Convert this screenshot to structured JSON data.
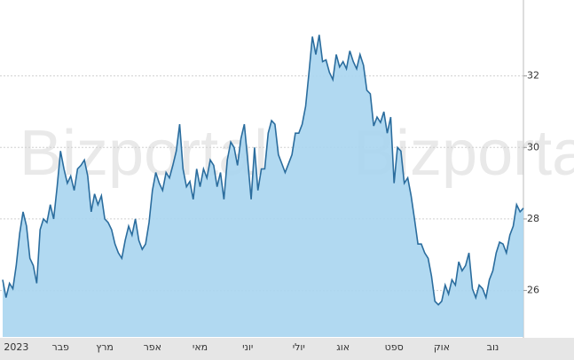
{
  "chart_data": {
    "type": "area",
    "watermark": "Bizportal",
    "categories": [
      null,
      null,
      null,
      null,
      "2023",
      null,
      null,
      null,
      null,
      null,
      null,
      null,
      null,
      null,
      null,
      null,
      null,
      "פבר",
      null,
      null,
      null,
      null,
      null,
      null,
      null,
      null,
      null,
      null,
      null,
      null,
      "מרץ",
      null,
      null,
      null,
      null,
      null,
      null,
      null,
      null,
      null,
      null,
      null,
      null,
      null,
      "אפר",
      null,
      null,
      null,
      null,
      null,
      null,
      null,
      null,
      null,
      null,
      null,
      null,
      null,
      "מאי",
      null,
      null,
      null,
      null,
      null,
      null,
      null,
      null,
      null,
      null,
      null,
      null,
      null,
      "יוני",
      null,
      null,
      null,
      null,
      null,
      null,
      null,
      null,
      null,
      null,
      null,
      null,
      null,
      null,
      "יולי",
      null,
      null,
      null,
      null,
      null,
      null,
      null,
      null,
      null,
      null,
      null,
      null,
      "אוג",
      null,
      null,
      null,
      null,
      null,
      null,
      null,
      null,
      null,
      null,
      null,
      null,
      null,
      null,
      "ספט",
      null,
      null,
      null,
      null,
      null,
      null,
      null,
      null,
      null,
      null,
      null,
      null,
      null,
      "אוק",
      null,
      null,
      null,
      null,
      null,
      null,
      null,
      null,
      null,
      null,
      null,
      null,
      null,
      null,
      "נוב",
      null,
      null,
      null,
      null,
      null,
      null,
      null,
      null,
      null
    ],
    "values": [
      26.3,
      25.8,
      26.2,
      26.05,
      26.7,
      27.6,
      28.2,
      27.8,
      26.9,
      26.7,
      26.2,
      27.7,
      28.0,
      27.9,
      28.4,
      28.0,
      28.9,
      29.9,
      29.4,
      29.0,
      29.2,
      28.8,
      29.4,
      29.5,
      29.65,
      29.2,
      28.2,
      28.7,
      28.4,
      28.65,
      28.0,
      27.9,
      27.7,
      27.3,
      27.05,
      26.9,
      27.4,
      27.8,
      27.55,
      28.0,
      27.4,
      27.15,
      27.3,
      27.9,
      28.8,
      29.3,
      29.0,
      28.8,
      29.3,
      29.15,
      29.5,
      29.9,
      30.65,
      29.4,
      28.9,
      29.05,
      28.55,
      29.4,
      28.9,
      29.4,
      29.15,
      29.65,
      29.5,
      28.9,
      29.3,
      28.55,
      29.65,
      30.15,
      30.0,
      29.5,
      30.25,
      30.65,
      29.65,
      28.55,
      30.0,
      28.8,
      29.4,
      29.4,
      30.4,
      30.75,
      30.65,
      29.8,
      29.55,
      29.3,
      29.55,
      29.8,
      30.4,
      30.4,
      30.65,
      31.15,
      32.1,
      33.1,
      32.6,
      33.15,
      32.4,
      32.45,
      32.1,
      31.9,
      32.6,
      32.25,
      32.4,
      32.2,
      32.7,
      32.4,
      32.2,
      32.6,
      32.3,
      31.6,
      31.5,
      30.6,
      30.85,
      30.7,
      31.0,
      30.4,
      30.85,
      29.0,
      30.0,
      29.9,
      29.0,
      29.15,
      28.65,
      28.0,
      27.3,
      27.3,
      27.05,
      26.9,
      26.4,
      25.7,
      25.6,
      25.7,
      26.15,
      25.9,
      26.3,
      26.15,
      26.8,
      26.55,
      26.7,
      27.05,
      26.05,
      25.8,
      26.15,
      26.05,
      25.8,
      26.3,
      26.55,
      27.05,
      27.35,
      27.3,
      27.05,
      27.55,
      27.8,
      28.4,
      28.2,
      28.3
    ],
    "ylim": [
      24.7,
      34
    ],
    "yticks": [
      26,
      28,
      30,
      32
    ],
    "grid": true,
    "line_color": "#2b6d9e",
    "fill_color": "#a9d5ef"
  }
}
